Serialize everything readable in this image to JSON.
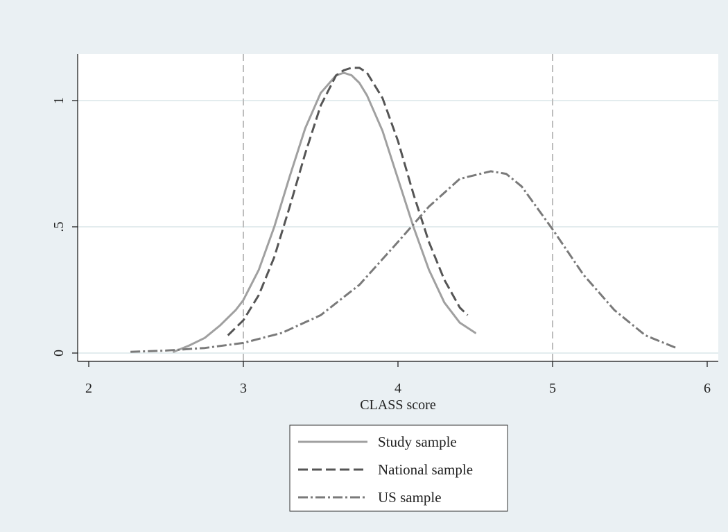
{
  "chart_data": {
    "type": "line",
    "xlabel": "CLASS score",
    "ylabel": "",
    "xlim": [
      2,
      6
    ],
    "ylim": [
      -0.02,
      1.18
    ],
    "x_ticks": [
      2,
      3,
      4,
      5,
      6
    ],
    "x_tick_labels": [
      "2",
      "3",
      "4",
      "5",
      "6"
    ],
    "y_ticks": [
      0,
      0.5,
      1
    ],
    "y_tick_labels": [
      "0",
      ".5",
      "1"
    ],
    "grid": "horizontal",
    "reference_lines_x": [
      3,
      5
    ],
    "legend_position": "bottom",
    "series": [
      {
        "name": "Study sample",
        "style": "solid",
        "color": "#a0a0a0",
        "x": [
          2.55,
          2.65,
          2.75,
          2.85,
          2.95,
          3.0,
          3.1,
          3.2,
          3.3,
          3.4,
          3.5,
          3.6,
          3.65,
          3.7,
          3.75,
          3.8,
          3.9,
          4.0,
          4.1,
          4.2,
          4.3,
          4.4,
          4.5
        ],
        "y": [
          0.005,
          0.03,
          0.06,
          0.11,
          0.17,
          0.21,
          0.33,
          0.5,
          0.7,
          0.89,
          1.03,
          1.1,
          1.11,
          1.1,
          1.07,
          1.02,
          0.88,
          0.69,
          0.5,
          0.33,
          0.2,
          0.12,
          0.08
        ]
      },
      {
        "name": "National sample",
        "style": "dashed",
        "color": "#555555",
        "x": [
          2.9,
          3.0,
          3.1,
          3.2,
          3.3,
          3.4,
          3.5,
          3.6,
          3.65,
          3.7,
          3.75,
          3.8,
          3.9,
          4.0,
          4.1,
          4.2,
          4.3,
          4.4,
          4.45
        ],
        "y": [
          0.07,
          0.13,
          0.23,
          0.38,
          0.58,
          0.79,
          0.98,
          1.1,
          1.12,
          1.13,
          1.13,
          1.11,
          1.01,
          0.84,
          0.63,
          0.44,
          0.29,
          0.18,
          0.15
        ]
      },
      {
        "name": "US sample",
        "style": "dashdot",
        "color": "#7a7a7a",
        "x": [
          2.27,
          2.5,
          2.75,
          3.0,
          3.25,
          3.5,
          3.75,
          4.0,
          4.2,
          4.4,
          4.6,
          4.7,
          4.8,
          5.0,
          5.2,
          5.4,
          5.6,
          5.8
        ],
        "y": [
          0.005,
          0.01,
          0.02,
          0.04,
          0.08,
          0.15,
          0.27,
          0.44,
          0.58,
          0.69,
          0.72,
          0.71,
          0.66,
          0.49,
          0.31,
          0.17,
          0.07,
          0.02
        ]
      }
    ]
  }
}
